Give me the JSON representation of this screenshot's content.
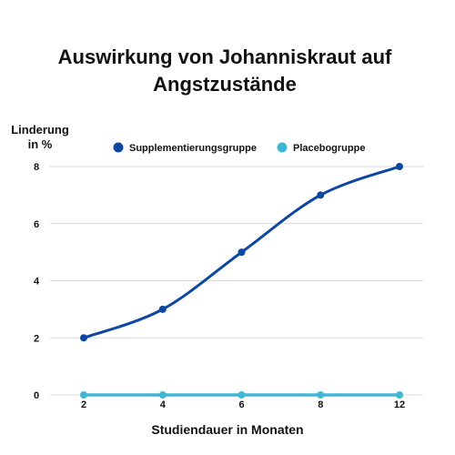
{
  "chart_data": {
    "type": "line",
    "title": [
      "Auswirkung von Johanniskraut auf",
      "Angstzustände"
    ],
    "ylabel": [
      "Linderung",
      "in %"
    ],
    "xlabel": "Studiendauer in Monaten",
    "categories": [
      "2",
      "4",
      "6",
      "8",
      "12"
    ],
    "ylim": [
      0,
      8
    ],
    "yticks": [
      "0",
      "2",
      "4",
      "6",
      "8"
    ],
    "grid": true,
    "legend_position": "top",
    "series": [
      {
        "name": "Supplementierungsgruppe",
        "values": [
          2,
          3,
          5,
          7,
          8
        ],
        "color": "#0d47a1"
      },
      {
        "name": "Placebogruppe",
        "values": [
          0,
          0,
          0,
          0,
          0
        ],
        "color": "#3fb8d6"
      }
    ]
  }
}
